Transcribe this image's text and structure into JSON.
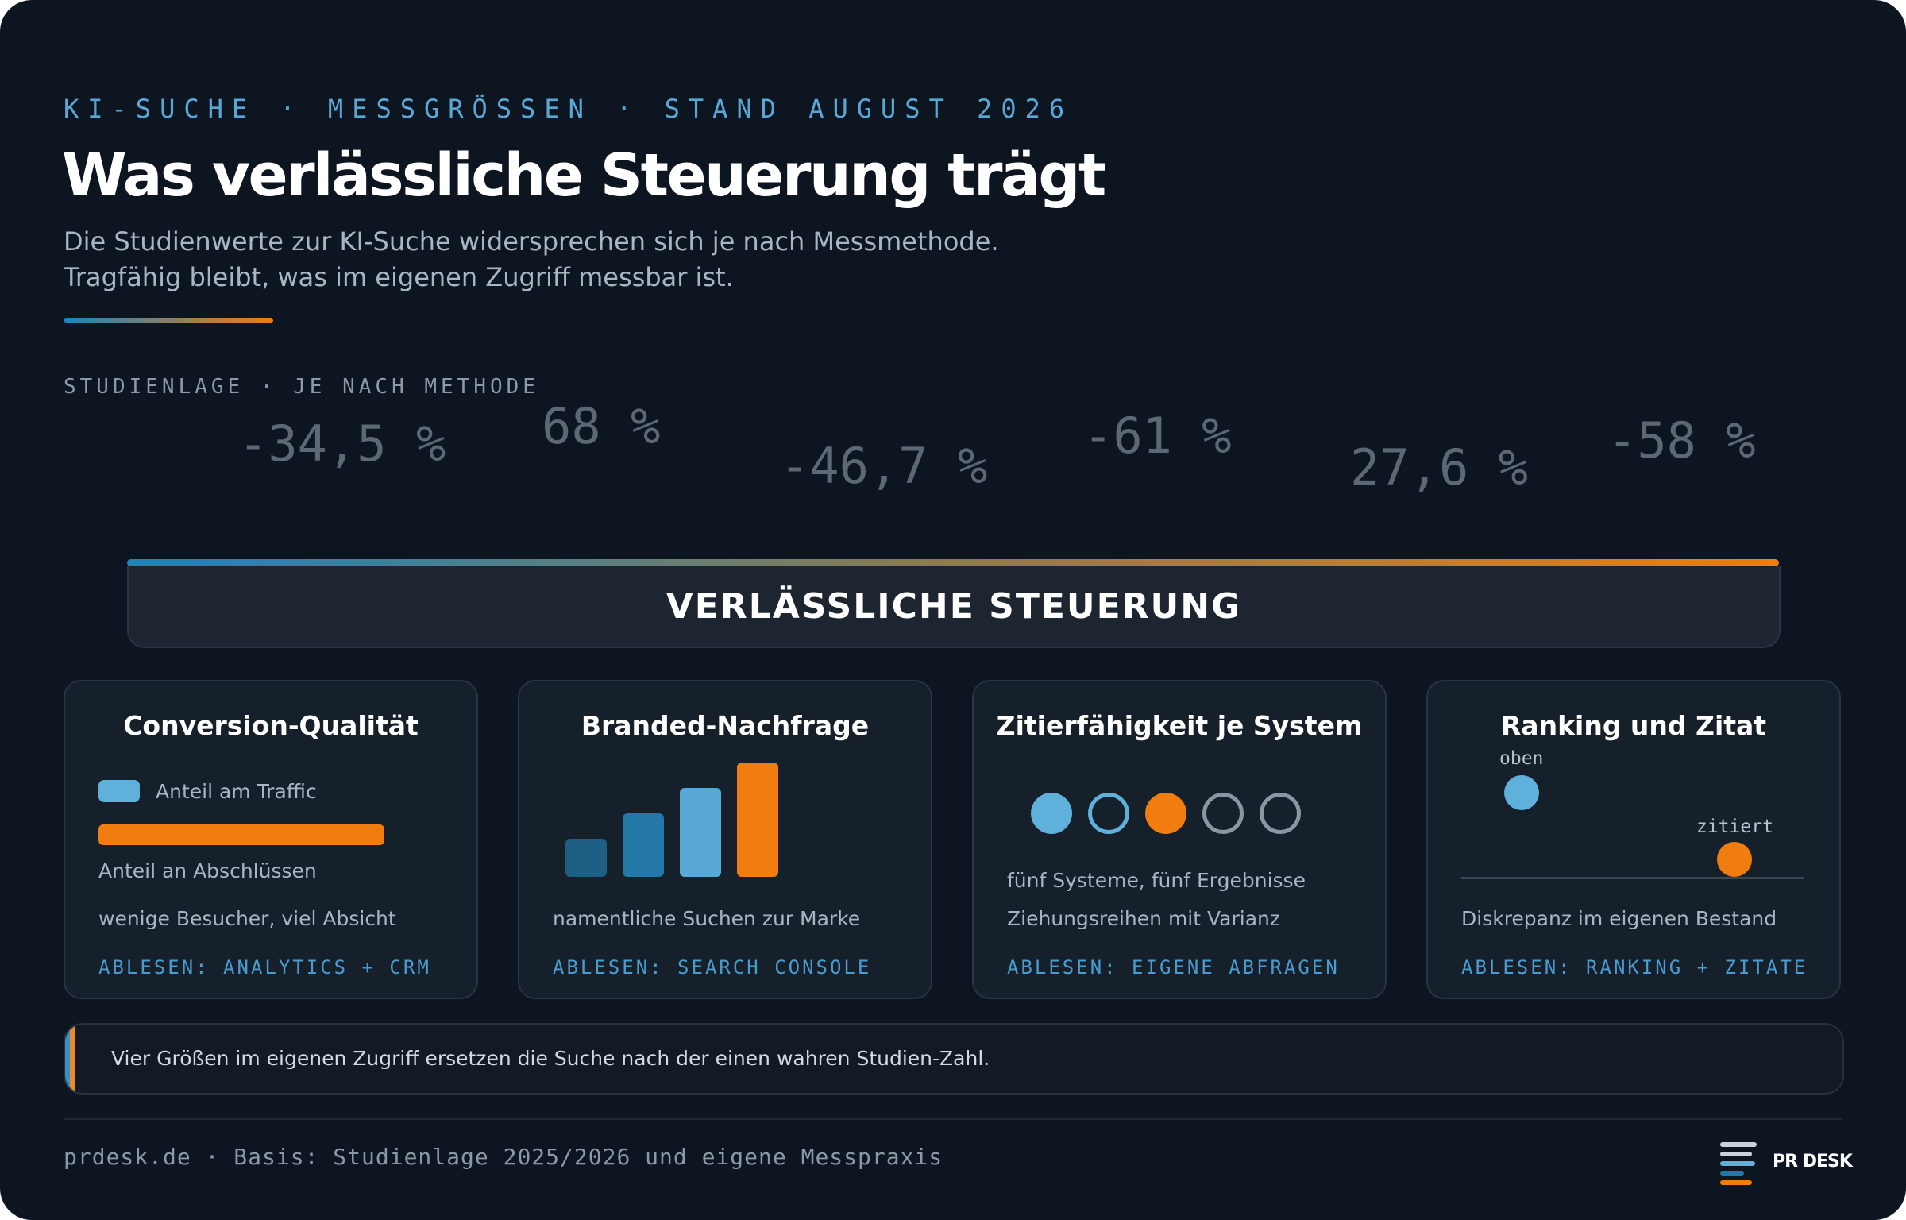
{
  "header": {
    "kicker": "KI-SUCHE · MESSGRÖSSEN · STAND AUGUST 2026",
    "title": "Was verlässliche Steuerung trägt",
    "subtitle_lines": [
      "Die Studienwerte zur KI-Suche widersprechen sich je nach Messmethode.",
      "Tragfähig bleibt, was im eigenen Zugriff messbar ist."
    ]
  },
  "study": {
    "label": "STUDIENLAGE · JE NACH METHODE",
    "values": [
      "-34,5 %",
      "68 %",
      "-46,7 %",
      "-61 %",
      "27,6 %",
      "-58 %"
    ]
  },
  "band": {
    "label": "VERLÄSSLICHE STEUERUNG"
  },
  "cards": [
    {
      "title": "Conversion-Qualität",
      "legend": "Anteil am Traffic",
      "bar_label": "Anteil an Abschlüssen",
      "text": "wenige Besucher, viel Absicht",
      "footer": "ABLESEN: ANALYTICS + CRM"
    },
    {
      "title": "Branded-Nachfrage",
      "text": "namentliche Suchen zur Marke",
      "footer": "ABLESEN: SEARCH CONSOLE"
    },
    {
      "title": "Zitierfähigkeit je System",
      "text_1": "fünf Systeme, fünf Ergebnisse",
      "text_2": "Ziehungsreihen mit Varianz",
      "footer": "ABLESEN: EIGENE ABFRAGEN"
    },
    {
      "title": "Ranking und Zitat",
      "label_top": "oben",
      "label_cited": "zitiert",
      "text": "Diskrepanz im eigenen Bestand",
      "footer": "ABLESEN: RANKING + ZITATE"
    }
  ],
  "callout": {
    "text": "Vier Größen im eigenen Zugriff ersetzen die Suche nach der einen wahren Studien-Zahl."
  },
  "footer": {
    "text": "prdesk.de · Basis: Studienlage 2025/2026 und eigene Messpraxis",
    "brand": "PR DESK"
  },
  "colors": {
    "background": "#0c1520",
    "accent_blue": "#5fb0da",
    "accent_orange": "#f07d0e",
    "card": "#16202b"
  },
  "icons": [
    "bar-chart-icon",
    "circle-set-icon",
    "rank-dot-icon",
    "prdesk-logo-icon"
  ]
}
